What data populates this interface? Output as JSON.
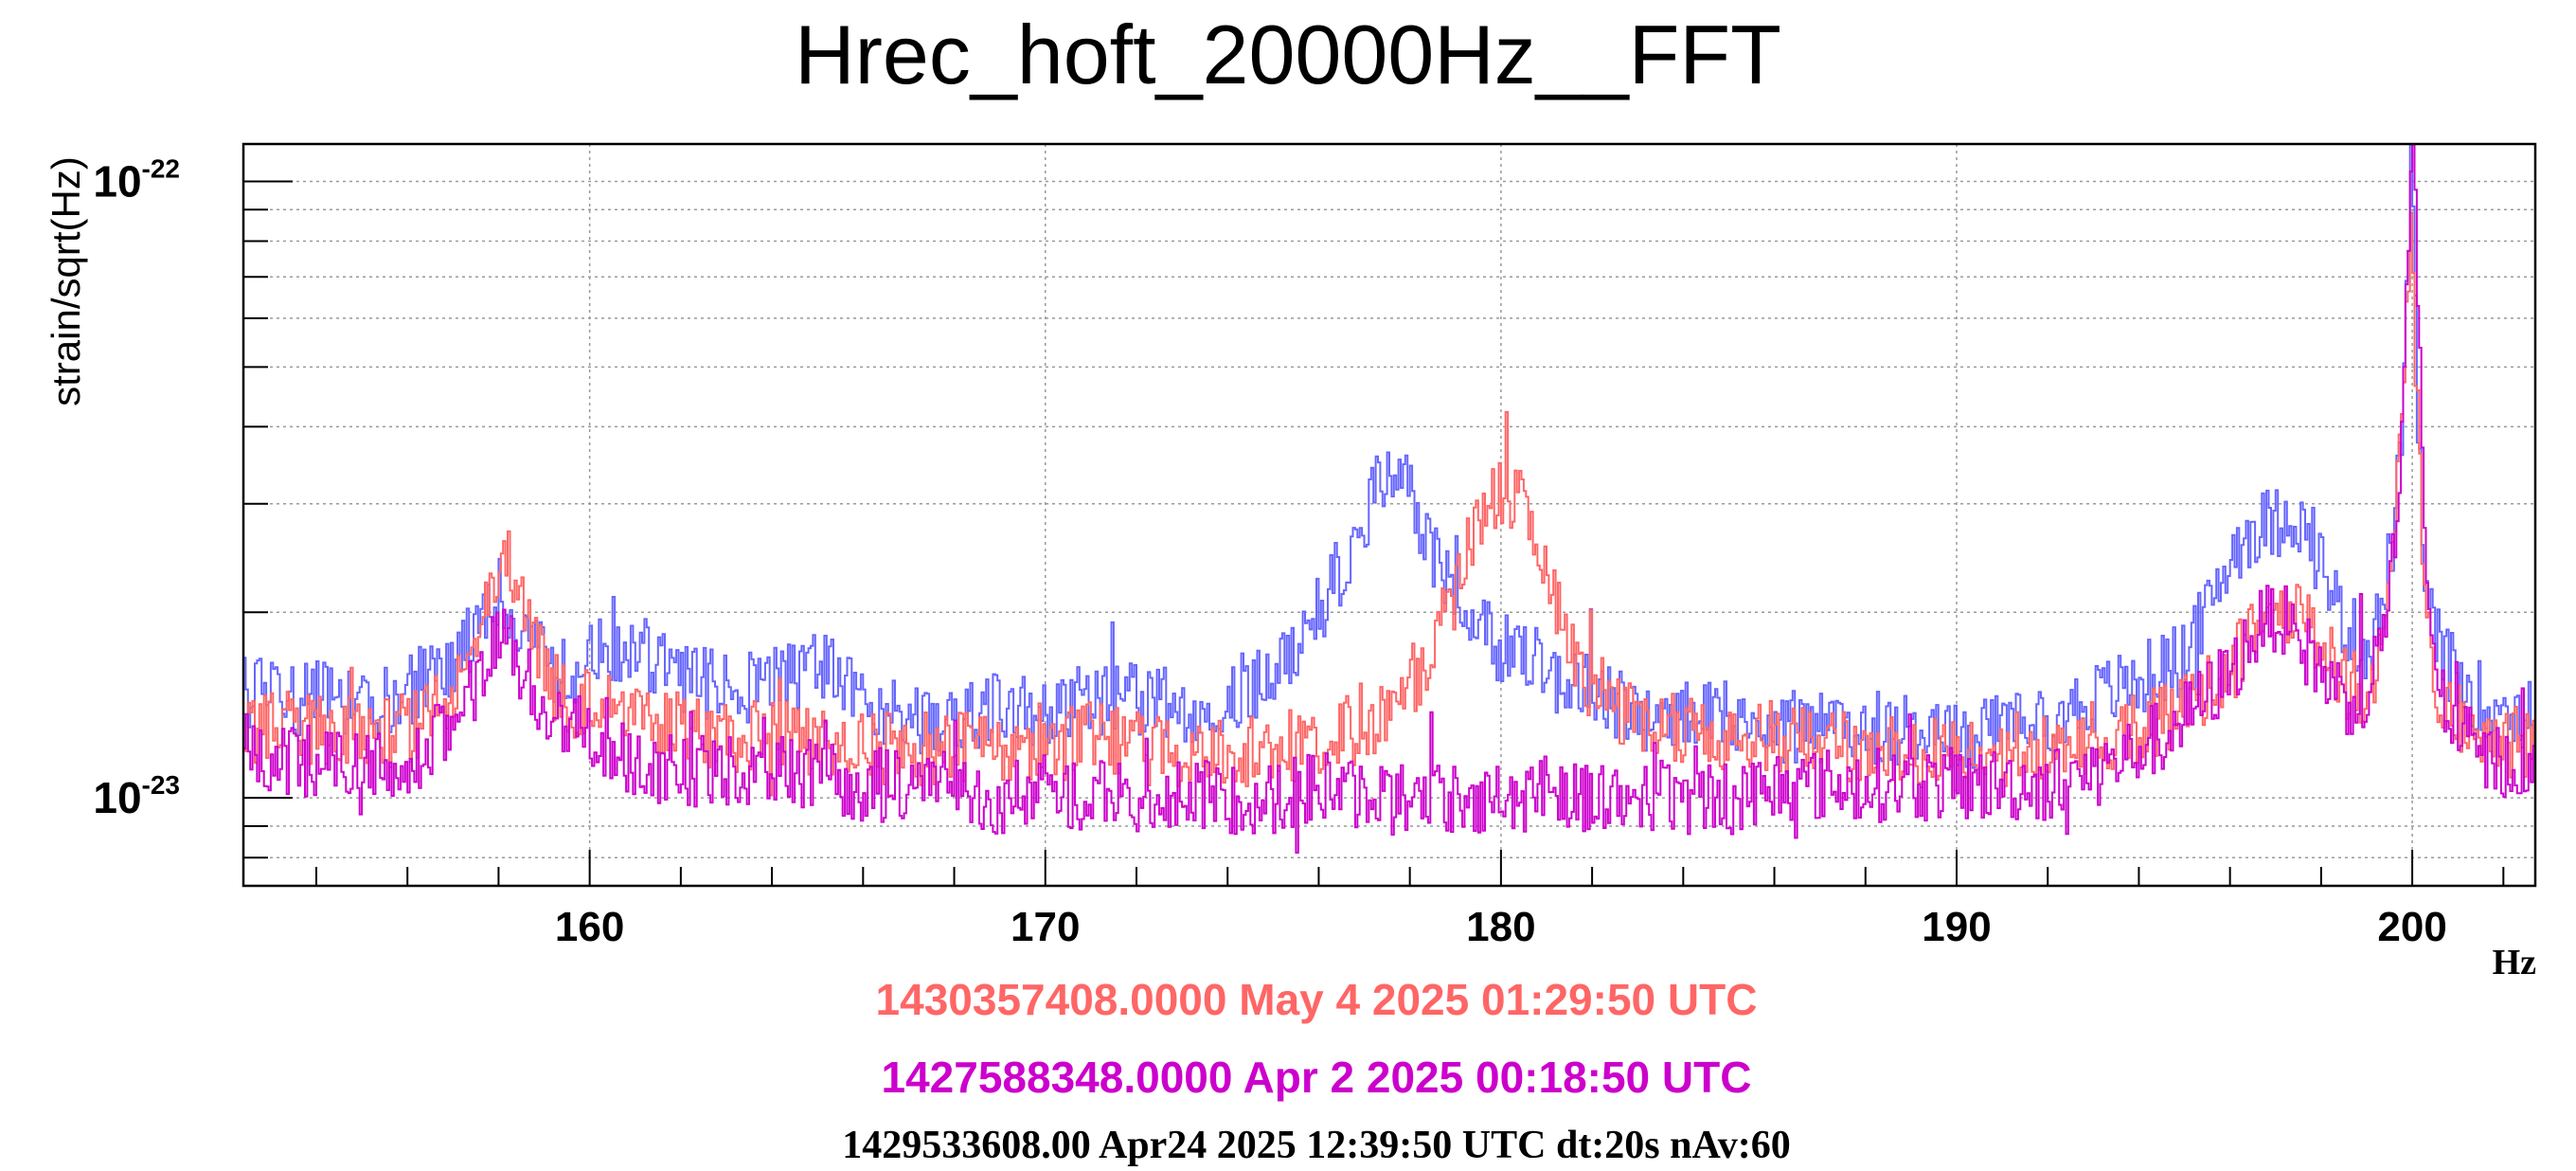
{
  "colors": {
    "blue": "#6666ff",
    "red": "#ff6666",
    "magenta": "#cc00cc",
    "grid": "#9a9a9a",
    "frame": "#000000"
  },
  "chart_data": {
    "type": "line",
    "title": "Hrec_hoft_20000Hz__FFT",
    "xlabel": "Hz",
    "ylabel": "strain/sqrt(Hz)",
    "xlim": [
      152.4,
      202.7
    ],
    "ylim": [
      7.2e-24,
      1.15e-22
    ],
    "yscale": "log",
    "grid": true,
    "x_ticks": [
      160,
      170,
      180,
      190,
      200
    ],
    "x_tick_labels": [
      "160",
      "170",
      "180",
      "190",
      "200"
    ],
    "y_ticks": [
      {
        "base": "10",
        "exp": "-22",
        "value": 1e-22
      },
      {
        "base": "10",
        "exp": "-23",
        "value": 1e-23
      }
    ],
    "legend": [
      {
        "text": "1430357408.0000 May 4 2025 01:29:50 UTC",
        "color": "#ff6666"
      },
      {
        "text": "1427588348.0000 Apr 2 2025 00:18:50 UTC",
        "color": "#cc00cc"
      }
    ],
    "footer": "1429533608.00 Apr24 2025 12:39:50 UTC dt:20s nAv:60",
    "series": [
      {
        "color": "#6666ff",
        "x": [
          152.4,
          153,
          154,
          155,
          156,
          157,
          157.5,
          158,
          158.5,
          159,
          159.5,
          160,
          161,
          162,
          163,
          164,
          165,
          166,
          167,
          168,
          169,
          170,
          171,
          172,
          173,
          174,
          175,
          176,
          176.5,
          177,
          177.5,
          178,
          178.5,
          179,
          179.5,
          180,
          180.5,
          181,
          182,
          183,
          184,
          185,
          186,
          187,
          188,
          189,
          190,
          191,
          192,
          193,
          194,
          195,
          195.5,
          196,
          196.5,
          197,
          197.3,
          197.6,
          198,
          198.5,
          199,
          199.3,
          199.6,
          199.8,
          199.95,
          200.1,
          200.25,
          200.5,
          201,
          201.5,
          202,
          202.7
        ],
        "y": [
          1.5e-23,
          1.45e-23,
          1.45e-23,
          1.4e-23,
          1.5e-23,
          1.65e-23,
          1.85e-23,
          2.2e-23,
          1.9e-23,
          1.65e-23,
          1.6e-23,
          1.7e-23,
          1.75e-23,
          1.55e-23,
          1.5e-23,
          1.55e-23,
          1.65e-23,
          1.45e-23,
          1.35e-23,
          1.35e-23,
          1.4e-23,
          1.4e-23,
          1.45e-23,
          1.45e-23,
          1.4e-23,
          1.45e-23,
          1.6e-23,
          2e-23,
          2.4e-23,
          2.8e-23,
          3.5e-23,
          3.1e-23,
          2.5e-23,
          2.1e-23,
          1.85e-23,
          1.75e-23,
          1.7e-23,
          1.6e-23,
          1.5e-23,
          1.35e-23,
          1.35e-23,
          1.35e-23,
          1.3e-23,
          1.3e-23,
          1.3e-23,
          1.3e-23,
          1.25e-23,
          1.3e-23,
          1.35e-23,
          1.45e-23,
          1.55e-23,
          1.7e-23,
          2e-23,
          2.5e-23,
          2.75e-23,
          2.8e-23,
          2.95e-23,
          2.7e-23,
          2.4e-23,
          1.9e-23,
          1.75e-23,
          2e-23,
          2.8e-23,
          4.5e-23,
          1.1e-22,
          4.2e-23,
          2.2e-23,
          1.8e-23,
          1.55e-23,
          1.45e-23,
          1.4e-23,
          1.35e-23
        ]
      },
      {
        "color": "#ff6666",
        "x": [
          152.4,
          153,
          154,
          155,
          156,
          157,
          157.5,
          158,
          158.5,
          159,
          159.5,
          160,
          161,
          162,
          163,
          164,
          165,
          166,
          167,
          168,
          169,
          170,
          171,
          172,
          173,
          174,
          175,
          176,
          177,
          178,
          178.5,
          179,
          179.5,
          180,
          180.5,
          181,
          181.5,
          182,
          183,
          184,
          185,
          186,
          187,
          188,
          189,
          190,
          191,
          192,
          193,
          194,
          195,
          196,
          196.5,
          197,
          197.5,
          198,
          198.5,
          199,
          199.3,
          199.6,
          199.8,
          199.95,
          200.1,
          200.25,
          200.5,
          201,
          201.5,
          202,
          202.7
        ],
        "y": [
          1.3e-23,
          1.3e-23,
          1.3e-23,
          1.25e-23,
          1.3e-23,
          1.45e-23,
          1.8e-23,
          2.5e-23,
          2.2e-23,
          1.6e-23,
          1.4e-23,
          1.45e-23,
          1.4e-23,
          1.3e-23,
          1.25e-23,
          1.25e-23,
          1.25e-23,
          1.2e-23,
          1.2e-23,
          1.2e-23,
          1.2e-23,
          1.2e-23,
          1.25e-23,
          1.2e-23,
          1.2e-23,
          1.2e-23,
          1.2e-23,
          1.25e-23,
          1.3e-23,
          1.55e-23,
          1.75e-23,
          2.2e-23,
          2.9e-23,
          3.2e-23,
          2.9e-23,
          2.2e-23,
          1.8e-23,
          1.5e-23,
          1.35e-23,
          1.3e-23,
          1.25e-23,
          1.25e-23,
          1.2e-23,
          1.2e-23,
          1.2e-23,
          1.15e-23,
          1.2e-23,
          1.2e-23,
          1.25e-23,
          1.3e-23,
          1.4e-23,
          1.6e-23,
          1.85e-23,
          2.1e-23,
          2e-23,
          1.75e-23,
          1.55e-23,
          1.45e-23,
          1.8e-23,
          2.6e-23,
          5e-23,
          9e-23,
          4e-23,
          2e-23,
          1.5e-23,
          1.35e-23,
          1.3e-23,
          1.25e-23,
          1.2e-23
        ]
      },
      {
        "color": "#cc00cc",
        "x": [
          152.4,
          153,
          154,
          155,
          156,
          157,
          157.5,
          158,
          158.5,
          159,
          159.5,
          160,
          161,
          162,
          163,
          164,
          165,
          166,
          167,
          168,
          169,
          170,
          171,
          172,
          173,
          174,
          175,
          176,
          177,
          178,
          179,
          180,
          181,
          182,
          183,
          184,
          185,
          186,
          187,
          188,
          189,
          190,
          191,
          192,
          193,
          194,
          195,
          196,
          196.5,
          197,
          197.5,
          198,
          198.5,
          199,
          199.4,
          199.7,
          199.85,
          200.0,
          200.15,
          200.3,
          200.6,
          201,
          201.5,
          202,
          202.7
        ],
        "y": [
          1.2e-23,
          1.15e-23,
          1.15e-23,
          1.1e-23,
          1.15e-23,
          1.3e-23,
          1.55e-23,
          1.8e-23,
          1.65e-23,
          1.4e-23,
          1.3e-23,
          1.25e-23,
          1.15e-23,
          1.1e-23,
          1.1e-23,
          1.1e-23,
          1.1e-23,
          1.05e-23,
          1.05e-23,
          1e-23,
          1e-23,
          1.05e-23,
          1e-23,
          1e-23,
          1e-23,
          1e-23,
          1e-23,
          1.05e-23,
          1e-23,
          1e-23,
          1e-23,
          1e-23,
          1.05e-23,
          1e-23,
          1e-23,
          1e-23,
          1e-23,
          1.05e-23,
          1.05e-23,
          1.05e-23,
          1.05e-23,
          1.05e-23,
          1.05e-23,
          1.05e-23,
          1.1e-23,
          1.2e-23,
          1.35e-23,
          1.6e-23,
          1.85e-23,
          2e-23,
          1.8e-23,
          1.6e-23,
          1.45e-23,
          1.45e-23,
          2e-23,
          3e-23,
          6e-23,
          1.15e-22,
          5e-23,
          2.2e-23,
          1.45e-23,
          1.3e-23,
          1.15e-23,
          1.15e-23,
          1.1e-23
        ]
      }
    ]
  }
}
